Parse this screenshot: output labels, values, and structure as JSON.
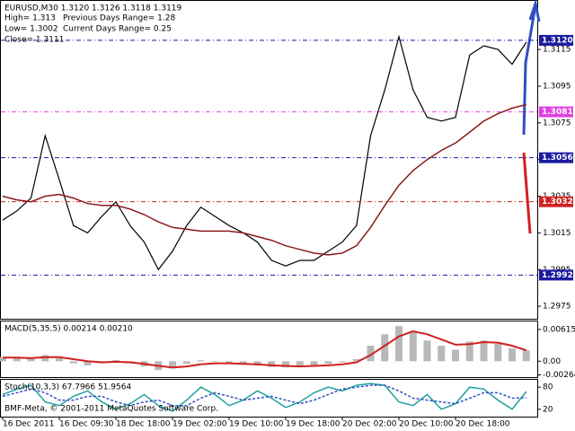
{
  "chart_data": [
    {
      "type": "line",
      "title": "EURUSD,M30  1.3120 1.3126 1.3118 1.3119",
      "annotations": [
        "High= 1.313",
        "Previous Days Range= 1.28",
        "Low= 1.3002",
        "Current Days Range= 0.25",
        "Close= 1.3111"
      ],
      "categories": [
        "16 Dec 2011",
        null,
        null,
        null,
        "16 Dec 09:30",
        null,
        null,
        null,
        "18 Dec 18:00",
        null,
        null,
        null,
        "19 Dec 02:00",
        null,
        null,
        null,
        "19 Dec 10:00",
        null,
        null,
        null,
        "19 Dec 18:00",
        null,
        null,
        null,
        "20 Dec 02:00",
        null,
        null,
        null,
        "20 Dec 10:00",
        null,
        null,
        null,
        "20 Dec 18:00",
        null,
        null,
        null,
        null,
        null
      ],
      "series": [
        {
          "color": "#000000",
          "values": [
            1.3022,
            1.3027,
            1.3034,
            1.3068,
            1.3044,
            1.3019,
            1.3015,
            1.3024,
            1.3032,
            1.3019,
            1.301,
            1.2995,
            1.3005,
            1.3019,
            1.3029,
            1.3024,
            1.3019,
            1.3015,
            1.301,
            1.3,
            1.2997,
            1.3,
            1.3,
            1.3005,
            1.301,
            1.3019,
            1.3068,
            1.3093,
            1.3122,
            1.3093,
            1.3078,
            1.3076,
            1.3078,
            1.3112,
            1.3117,
            1.3115,
            1.3107,
            1.3119
          ]
        },
        {
          "color": "#8b1a1a",
          "values": [
            1.3035,
            1.3033,
            1.3032,
            1.3035,
            1.3036,
            1.3034,
            1.3031,
            1.303,
            1.303,
            1.3028,
            1.3025,
            1.3021,
            1.3018,
            1.3017,
            1.3016,
            1.3016,
            1.3016,
            1.3015,
            1.3013,
            1.3011,
            1.3008,
            1.3006,
            1.3004,
            1.3003,
            1.3004,
            1.3008,
            1.3018,
            1.303,
            1.3041,
            1.3049,
            1.3055,
            1.306,
            1.3064,
            1.307,
            1.3076,
            1.308,
            1.3083,
            1.3085
          ]
        }
      ],
      "levels": [
        {
          "value": 1.312,
          "label": "1.3120",
          "color": "#1a1aa0"
        },
        {
          "value": 1.3081,
          "label": "1.3081",
          "color": "#e040e0"
        },
        {
          "value": 1.3056,
          "label": "1.3056",
          "color": "#1a1aa0"
        },
        {
          "value": 1.3032,
          "label": "1.3032",
          "color": "#d02020"
        },
        {
          "value": 1.2992,
          "label": "1.2992",
          "color": "#1a1aa0"
        }
      ],
      "ylim": [
        1.29682,
        1.31415
      ],
      "yticks": [
        1.3115,
        1.3095,
        1.3075,
        1.3055,
        1.3035,
        1.3015,
        1.2995,
        1.2975
      ]
    },
    {
      "type": "bar",
      "title": "MACD(5,35,5) 0.00214 0.00210",
      "series": [
        {
          "color": "#b8b8b8",
          "kind": "bar",
          "values": [
            0.0008,
            0.0006,
            0.0005,
            0.0012,
            0.0006,
            -0.0004,
            -0.0008,
            -0.0004,
            0.0002,
            -0.0004,
            -0.001,
            -0.0017,
            -0.0014,
            -0.0005,
            0.0002,
            -0.0001,
            -0.0004,
            -0.0006,
            -0.0008,
            -0.0011,
            -0.0012,
            -0.001,
            -0.0008,
            -0.0005,
            -0.0002,
            0.0004,
            0.003,
            0.0052,
            0.0068,
            0.0058,
            0.004,
            0.003,
            0.0022,
            0.0038,
            0.004,
            0.0034,
            0.0025,
            0.0021
          ]
        },
        {
          "color": "#d02020",
          "kind": "line",
          "values": [
            0.0007,
            0.0007,
            0.0006,
            0.0008,
            0.0008,
            0.0004,
            0.0,
            -0.0002,
            -0.0001,
            -0.0002,
            -0.0005,
            -0.0009,
            -0.0012,
            -0.001,
            -0.0006,
            -0.0004,
            -0.0004,
            -0.0005,
            -0.0006,
            -0.0008,
            -0.0009,
            -0.001,
            -0.0009,
            -0.0008,
            -0.0006,
            -0.0002,
            0.0012,
            0.003,
            0.0048,
            0.0058,
            0.0052,
            0.0042,
            0.0032,
            0.0033,
            0.0037,
            0.0036,
            0.003,
            0.0021
          ]
        }
      ],
      "ylim": [
        -0.00307,
        0.00769
      ],
      "yticks": [
        0.00615,
        {
          "value": 0,
          "label": "0.00"
        },
        -0.00264
      ]
    },
    {
      "type": "line",
      "title": "Stoch(10,3,3) 67.7966 51.9564",
      "annotations": [
        "BMF-Meta, © 2001-2011 MetaQuotes Software Corp."
      ],
      "series": [
        {
          "color": "#20a0a0",
          "values": [
            60,
            75,
            85,
            40,
            30,
            55,
            70,
            40,
            20,
            35,
            60,
            30,
            15,
            45,
            80,
            60,
            30,
            45,
            70,
            50,
            25,
            40,
            65,
            80,
            70,
            85,
            90,
            85,
            40,
            30,
            60,
            20,
            35,
            80,
            75,
            45,
            20,
            68
          ]
        },
        {
          "color": "#3050c0",
          "dash": true,
          "values": [
            55,
            65,
            75,
            65,
            45,
            45,
            55,
            55,
            40,
            30,
            40,
            45,
            30,
            30,
            50,
            65,
            55,
            45,
            50,
            55,
            45,
            35,
            45,
            60,
            75,
            80,
            85,
            85,
            70,
            50,
            45,
            40,
            35,
            50,
            65,
            65,
            50,
            52
          ]
        }
      ],
      "ylim": [
        0,
        100
      ],
      "yticks": [
        80,
        20
      ]
    }
  ]
}
